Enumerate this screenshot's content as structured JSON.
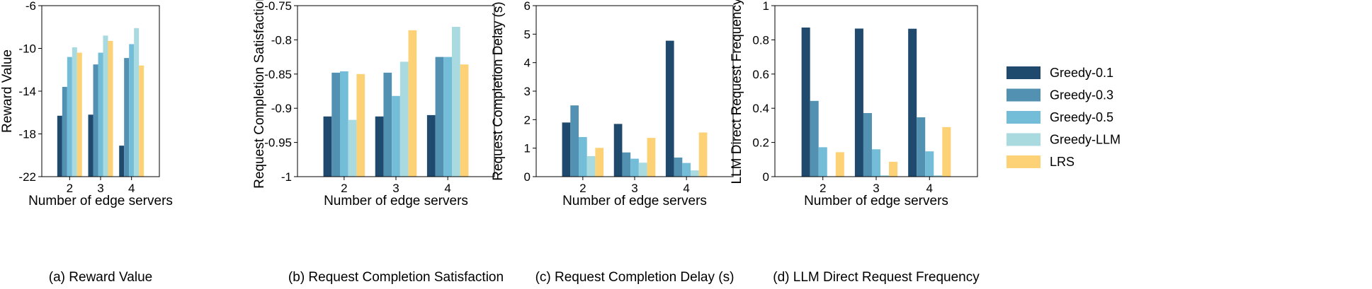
{
  "legend": [
    {
      "name": "Greedy-0.1",
      "color": "#1f4a6e"
    },
    {
      "name": "Greedy-0.3",
      "color": "#5291b2"
    },
    {
      "name": "Greedy-0.5",
      "color": "#74bdd8"
    },
    {
      "name": "Greedy-LLM",
      "color": "#a8dae0"
    },
    {
      "name": "LRS",
      "color": "#fdd175"
    }
  ],
  "chart_data": [
    {
      "type": "bar",
      "caption": "(a) Reward Value",
      "xlabel": "Number of edge servers",
      "ylabel": "Reward Value",
      "categories": [
        "2",
        "3",
        "4"
      ],
      "ylim": [
        -22,
        -6
      ],
      "yticks": [
        -22,
        -18,
        -14,
        -10,
        -6
      ],
      "ytick_labels": [
        "-22",
        "-18",
        "-14",
        "-10",
        "-6"
      ],
      "series": [
        {
          "name": "Greedy-0.1",
          "values": [
            -16.3,
            -16.2,
            -19.1
          ]
        },
        {
          "name": "Greedy-0.3",
          "values": [
            -13.6,
            -11.5,
            -10.9
          ]
        },
        {
          "name": "Greedy-0.5",
          "values": [
            -10.8,
            -10.4,
            -9.6
          ]
        },
        {
          "name": "Greedy-LLM",
          "values": [
            -9.9,
            -8.8,
            -8.1
          ]
        },
        {
          "name": "LRS",
          "values": [
            -10.4,
            -9.3,
            -11.6
          ]
        }
      ]
    },
    {
      "type": "bar",
      "caption": "(b) Request Completion Satisfaction",
      "xlabel": "Number of edge servers",
      "ylabel": "Request Completion Satisfaction",
      "categories": [
        "2",
        "3",
        "4"
      ],
      "ylim": [
        -1,
        -0.75
      ],
      "yticks": [
        -1,
        -0.95,
        -0.9,
        -0.85,
        -0.8,
        -0.75
      ],
      "ytick_labels": [
        "-1",
        "-0.95",
        "-0.9",
        "-0.85",
        "-0.8",
        "-0.75"
      ],
      "series": [
        {
          "name": "Greedy-0.1",
          "values": [
            -0.912,
            -0.912,
            -0.91
          ]
        },
        {
          "name": "Greedy-0.3",
          "values": [
            -0.848,
            -0.848,
            -0.825
          ]
        },
        {
          "name": "Greedy-0.5",
          "values": [
            -0.846,
            -0.882,
            -0.825
          ]
        },
        {
          "name": "Greedy-LLM",
          "values": [
            -0.917,
            -0.832,
            -0.781
          ]
        },
        {
          "name": "LRS",
          "values": [
            -0.85,
            -0.786,
            -0.836
          ]
        }
      ]
    },
    {
      "type": "bar",
      "caption": "(c) Request Completion Delay (s)",
      "xlabel": "Number of edge servers",
      "ylabel": "Request Completion Delay (s)",
      "categories": [
        "2",
        "3",
        "4"
      ],
      "ylim": [
        0,
        6
      ],
      "yticks": [
        0,
        1,
        2,
        3,
        4,
        5,
        6
      ],
      "ytick_labels": [
        "0",
        "1",
        "2",
        "3",
        "4",
        "5",
        "6"
      ],
      "series": [
        {
          "name": "Greedy-0.1",
          "values": [
            1.9,
            1.85,
            4.77
          ]
        },
        {
          "name": "Greedy-0.3",
          "values": [
            2.5,
            0.85,
            0.67
          ]
        },
        {
          "name": "Greedy-0.5",
          "values": [
            1.39,
            0.63,
            0.48
          ]
        },
        {
          "name": "Greedy-LLM",
          "values": [
            0.72,
            0.49,
            0.22
          ]
        },
        {
          "name": "LRS",
          "values": [
            1.01,
            1.36,
            1.55
          ]
        }
      ]
    },
    {
      "type": "bar",
      "caption": "(d) LLM Direct Request Frequency",
      "xlabel": "Number of edge servers",
      "ylabel": "LLM Direct Request Frequency",
      "categories": [
        "2",
        "3",
        "4"
      ],
      "ylim": [
        0,
        1
      ],
      "yticks": [
        0,
        0.2,
        0.4,
        0.6,
        0.8,
        1
      ],
      "ytick_labels": [
        "0",
        "0.2",
        "0.4",
        "0.6",
        "0.8",
        "1"
      ],
      "series": [
        {
          "name": "Greedy-0.1",
          "values": [
            0.872,
            0.866,
            0.865
          ]
        },
        {
          "name": "Greedy-0.3",
          "values": [
            0.443,
            0.372,
            0.347
          ]
        },
        {
          "name": "Greedy-0.5",
          "values": [
            0.172,
            0.16,
            0.148
          ]
        },
        {
          "name": "Greedy-LLM",
          "values": [
            0.0,
            0.008,
            0.008
          ]
        },
        {
          "name": "LRS",
          "values": [
            0.143,
            0.087,
            0.29
          ]
        }
      ]
    }
  ]
}
